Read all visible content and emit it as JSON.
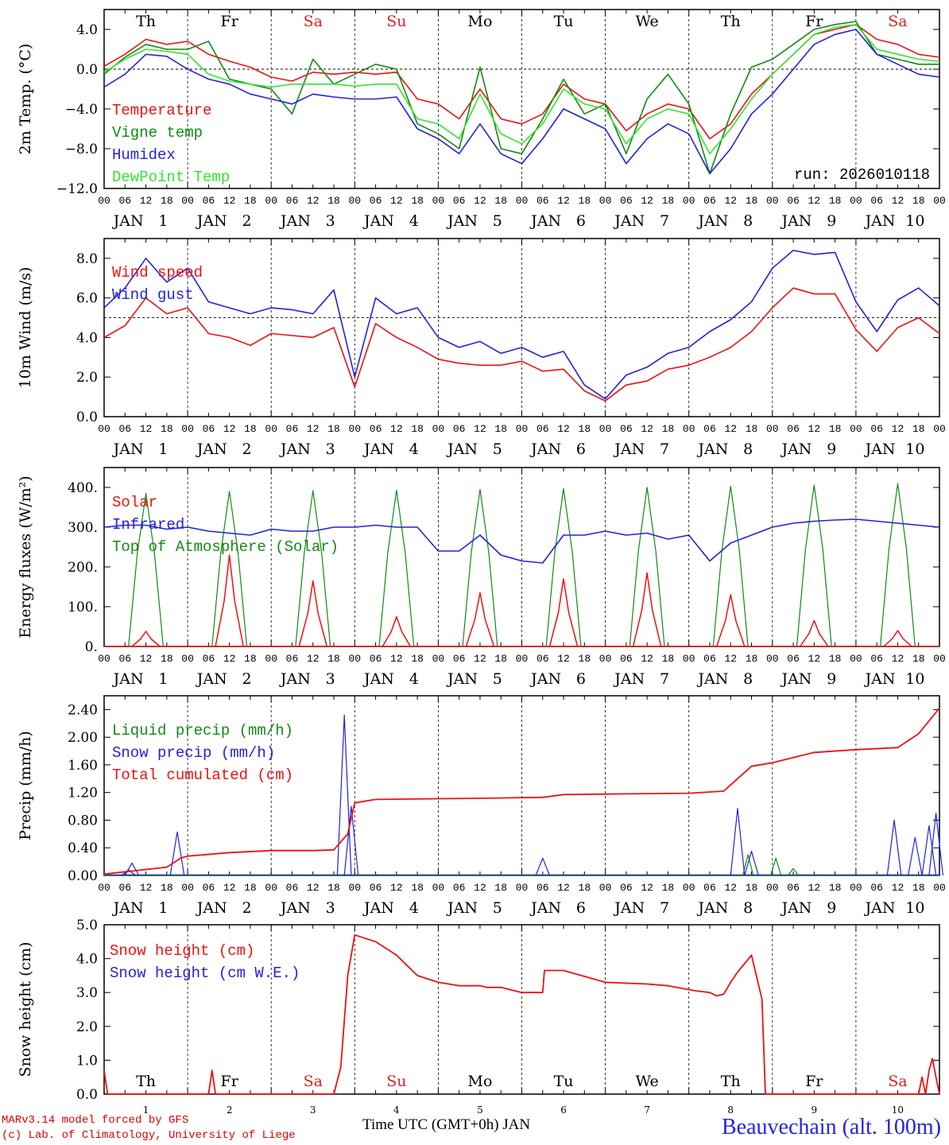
{
  "days": [
    "1",
    "2",
    "3",
    "4",
    "5",
    "6",
    "7",
    "8",
    "9",
    "10"
  ],
  "weekdays": [
    {
      "label": "Th",
      "color": "#000000"
    },
    {
      "label": "Fr",
      "color": "#000000"
    },
    {
      "label": "Sa",
      "color": "#e02020"
    },
    {
      "label": "Su",
      "color": "#e02020"
    },
    {
      "label": "Mo",
      "color": "#000000"
    },
    {
      "label": "Tu",
      "color": "#000000"
    },
    {
      "label": "We",
      "color": "#000000"
    },
    {
      "label": "Th",
      "color": "#000000"
    },
    {
      "label": "Fr",
      "color": "#000000"
    },
    {
      "label": "Sa",
      "color": "#e02020"
    }
  ],
  "month_label": "JAN",
  "hour_ticks": [
    "00",
    "06",
    "12",
    "18"
  ],
  "colors": {
    "red": "#ee1111",
    "green": "#138a13",
    "blue": "#2222dd",
    "lightgreen": "#33e533",
    "title_blue": "#2323e6"
  },
  "footer": {
    "model_line": "MARv3.14 model forced by GFS",
    "lab_line": "(c) Lab. of Climatology, University of Liege",
    "x_title": "Time UTC (GMT+0h) JAN",
    "station": "Beauvechain (alt. 100m)"
  },
  "chart_data": [
    {
      "id": "temperature",
      "type": "line",
      "ylabel": "2m Temp. (°C)",
      "ylim": [
        -12,
        6
      ],
      "yticks": [
        -12,
        -8,
        -4,
        0,
        4
      ],
      "ytick_labels": [
        "−12.0",
        "−8.0",
        "−4.0",
        "0.0",
        "4.0"
      ],
      "reference_line": 0,
      "annotation": "run: 2026010118",
      "x_hours": [
        0,
        6,
        12,
        18,
        24,
        30,
        36,
        42,
        48,
        54,
        60,
        66,
        72,
        78,
        84,
        90,
        96,
        102,
        108,
        114,
        120,
        126,
        132,
        138,
        144,
        150,
        156,
        162,
        168,
        174,
        180,
        186,
        192,
        198,
        204,
        210,
        216,
        222,
        228,
        234,
        240
      ],
      "series": [
        {
          "name": "Temperature",
          "color": "red",
          "values": [
            0.3,
            1.5,
            3.0,
            2.5,
            2.8,
            1.5,
            0.8,
            0.2,
            -0.8,
            -1.2,
            -0.3,
            -0.5,
            -0.3,
            -0.5,
            -0.3,
            -3.0,
            -3.5,
            -5.0,
            -2.0,
            -5.0,
            -5.5,
            -4.5,
            -1.5,
            -3.0,
            -3.5,
            -6.2,
            -4.5,
            -3.5,
            -4.0,
            -7.0,
            -5.5,
            -2.5,
            -0.5,
            1.5,
            3.5,
            4.0,
            4.5,
            3.0,
            2.5,
            1.5,
            1.2
          ]
        },
        {
          "name": "Vigne temp",
          "color": "green",
          "values": [
            -0.5,
            1.2,
            2.5,
            2.0,
            2.0,
            2.8,
            -1.0,
            -1.5,
            -2.0,
            -4.5,
            1.0,
            -1.5,
            -0.5,
            0.5,
            0.0,
            -5.5,
            -6.5,
            -8.0,
            0.2,
            -8.0,
            -8.5,
            -5.0,
            -1.0,
            -4.5,
            -3.5,
            -8.5,
            -3.0,
            -0.5,
            -3.5,
            -10.5,
            -4.5,
            0.2,
            1.0,
            2.5,
            4.0,
            4.5,
            4.8,
            1.5,
            1.0,
            0.5,
            0.5
          ]
        },
        {
          "name": "Humidex",
          "color": "blue",
          "values": [
            -1.8,
            -0.5,
            1.5,
            1.3,
            0.0,
            -1.0,
            -1.5,
            -2.5,
            -3.0,
            -3.5,
            -2.5,
            -2.8,
            -3.0,
            -3.0,
            -2.8,
            -6.0,
            -7.0,
            -8.5,
            -5.5,
            -8.5,
            -9.5,
            -7.0,
            -4.0,
            -5.0,
            -6.0,
            -9.5,
            -7.0,
            -5.5,
            -6.5,
            -10.5,
            -8.0,
            -4.5,
            -2.5,
            0.0,
            2.5,
            3.5,
            4.0,
            1.5,
            0.5,
            -0.5,
            -0.8
          ]
        },
        {
          "name": "DewPoint Temp",
          "color": "lightgreen",
          "values": [
            -0.3,
            1.0,
            2.0,
            1.8,
            1.5,
            -0.5,
            -1.2,
            -1.5,
            -1.8,
            -1.5,
            -1.5,
            -1.5,
            -1.7,
            -1.5,
            -1.5,
            -5.0,
            -5.5,
            -7.0,
            -2.5,
            -6.5,
            -7.5,
            -5.5,
            -2.0,
            -3.5,
            -4.0,
            -7.5,
            -5.0,
            -4.0,
            -4.5,
            -8.5,
            -6.0,
            -3.0,
            -0.5,
            1.5,
            3.5,
            4.2,
            4.5,
            2.0,
            1.5,
            1.0,
            0.8
          ]
        }
      ]
    },
    {
      "id": "wind",
      "type": "line",
      "ylabel": "10m Wind (m/s)",
      "ylim": [
        0,
        9
      ],
      "yticks": [
        0,
        2,
        4,
        6,
        8
      ],
      "ytick_labels": [
        "0.0",
        "2.0",
        "4.0",
        "6.0",
        "8.0"
      ],
      "reference_line": 5,
      "x_hours": [
        0,
        6,
        12,
        18,
        24,
        30,
        36,
        42,
        48,
        54,
        60,
        66,
        72,
        78,
        84,
        90,
        96,
        102,
        108,
        114,
        120,
        126,
        132,
        138,
        144,
        150,
        156,
        162,
        168,
        174,
        180,
        186,
        192,
        198,
        204,
        210,
        216,
        222,
        228,
        234,
        240
      ],
      "series": [
        {
          "name": "Wind speed",
          "color": "red",
          "values": [
            4.0,
            4.6,
            6.0,
            5.2,
            5.5,
            4.2,
            4.0,
            3.6,
            4.2,
            4.1,
            4.0,
            4.5,
            1.5,
            4.7,
            4.0,
            3.5,
            2.9,
            2.7,
            2.6,
            2.6,
            2.8,
            2.3,
            2.4,
            1.3,
            0.8,
            1.6,
            1.8,
            2.4,
            2.6,
            3.0,
            3.5,
            4.3,
            5.5,
            6.5,
            6.2,
            6.2,
            4.4,
            3.3,
            4.5,
            5.0,
            4.2
          ]
        },
        {
          "name": "Wind gust",
          "color": "blue",
          "values": [
            5.5,
            6.5,
            8.0,
            6.8,
            7.5,
            5.8,
            5.5,
            5.2,
            5.5,
            5.4,
            5.2,
            6.4,
            2.0,
            6.0,
            5.2,
            5.5,
            4.0,
            3.5,
            3.8,
            3.2,
            3.5,
            3.0,
            3.3,
            1.6,
            0.9,
            2.1,
            2.5,
            3.2,
            3.5,
            4.3,
            4.9,
            5.8,
            7.5,
            8.4,
            8.2,
            8.3,
            5.8,
            4.3,
            5.9,
            6.5,
            5.6
          ]
        }
      ]
    },
    {
      "id": "energy",
      "type": "line",
      "ylabel": "Energy fluxes (W/m²)",
      "ylim": [
        0,
        450
      ],
      "yticks": [
        0,
        100,
        200,
        300,
        400
      ],
      "ytick_labels": [
        "0.",
        "100.",
        "200.",
        "300.",
        "400."
      ],
      "peaks": {
        "toa": [
          385,
          390,
          392,
          393,
          395,
          397,
          400,
          403,
          406,
          410
        ],
        "solar": [
          38,
          230,
          165,
          75,
          135,
          170,
          185,
          130,
          65,
          40
        ]
      },
      "infrared_hours": [
        0,
        6,
        12,
        18,
        24,
        30,
        36,
        42,
        48,
        54,
        60,
        66,
        72,
        78,
        84,
        90,
        96,
        102,
        108,
        114,
        120,
        126,
        132,
        138,
        144,
        150,
        156,
        162,
        168,
        174,
        180,
        186,
        192,
        198,
        204,
        210,
        216,
        222,
        228,
        234,
        240
      ],
      "infrared_values": [
        300,
        305,
        305,
        295,
        300,
        290,
        285,
        280,
        295,
        290,
        290,
        300,
        300,
        305,
        300,
        300,
        240,
        240,
        280,
        230,
        215,
        210,
        280,
        280,
        290,
        280,
        285,
        270,
        280,
        215,
        260,
        280,
        300,
        310,
        315,
        318,
        320,
        315,
        310,
        305,
        300
      ],
      "series": [
        {
          "name": "Solar",
          "color": "red"
        },
        {
          "name": "Infrared",
          "color": "blue"
        },
        {
          "name": "Top of Atmosphere (Solar)",
          "color": "green"
        }
      ]
    },
    {
      "id": "precip",
      "type": "line",
      "ylabel": "Precip (mm/h)",
      "ylim": [
        0,
        2.6
      ],
      "yticks": [
        0,
        0.4,
        0.8,
        1.2,
        1.6,
        2.0,
        2.4
      ],
      "ytick_labels": [
        "0.00",
        "0.40",
        "0.80",
        "1.20",
        "1.60",
        "2.00",
        "2.40"
      ],
      "cumulated": {
        "x_hours": [
          0,
          18,
          22,
          24,
          36,
          48,
          60,
          66,
          70,
          72,
          78,
          96,
          114,
          126,
          132,
          150,
          168,
          178,
          182,
          186,
          192,
          204,
          216,
          228,
          234,
          240
        ],
        "values": [
          0.02,
          0.12,
          0.25,
          0.28,
          0.33,
          0.36,
          0.36,
          0.37,
          0.6,
          1.05,
          1.1,
          1.11,
          1.12,
          1.13,
          1.17,
          1.18,
          1.19,
          1.22,
          1.4,
          1.58,
          1.63,
          1.78,
          1.82,
          1.85,
          2.05,
          2.42
        ]
      },
      "snow_spikes": [
        {
          "x": 7,
          "y": 0.08
        },
        {
          "x": 8,
          "y": 0.18
        },
        {
          "x": 21,
          "y": 0.63
        },
        {
          "x": 69,
          "y": 2.32
        },
        {
          "x": 71,
          "y": 1.0
        },
        {
          "x": 126,
          "y": 0.25
        },
        {
          "x": 182,
          "y": 0.97
        },
        {
          "x": 186,
          "y": 0.35
        },
        {
          "x": 227,
          "y": 0.8
        },
        {
          "x": 233,
          "y": 0.55
        },
        {
          "x": 237,
          "y": 0.72
        },
        {
          "x": 239,
          "y": 0.9
        }
      ],
      "liquid_spikes": [
        {
          "x": 185,
          "y": 0.3
        },
        {
          "x": 193,
          "y": 0.25
        },
        {
          "x": 198,
          "y": 0.1
        }
      ],
      "series": [
        {
          "name": "Liquid precip (mm/h)",
          "color": "green"
        },
        {
          "name": "Snow precip (mm/h)",
          "color": "blue"
        },
        {
          "name": "Total cumulated (cm)",
          "color": "red"
        }
      ]
    },
    {
      "id": "snow",
      "type": "line",
      "ylabel": "Snow height (cm)",
      "ylim": [
        0,
        5
      ],
      "yticks": [
        0,
        1,
        2,
        3,
        4,
        5
      ],
      "ytick_labels": [
        "0.0",
        "1.0",
        "2.0",
        "3.0",
        "4.0",
        "5.0"
      ],
      "x_hours": [
        0,
        1,
        2,
        24,
        30,
        31,
        32,
        66,
        68,
        70,
        72,
        78,
        84,
        90,
        96,
        102,
        108,
        110,
        114,
        120,
        126,
        126.5,
        132,
        144,
        156,
        162,
        170,
        174,
        176,
        178,
        180,
        182,
        186,
        189,
        190,
        216,
        234,
        235,
        236,
        237,
        238,
        239,
        240
      ],
      "series": [
        {
          "name": "Snow height (cm)",
          "color": "red",
          "values": [
            0.7,
            0,
            0,
            0,
            0,
            0.7,
            0,
            0,
            0.8,
            3.5,
            4.7,
            4.5,
            4.1,
            3.5,
            3.3,
            3.2,
            3.2,
            3.15,
            3.15,
            3.0,
            3.0,
            3.65,
            3.65,
            3.3,
            3.25,
            3.2,
            3.05,
            3.0,
            2.9,
            2.95,
            3.3,
            3.6,
            4.1,
            2.8,
            0,
            0,
            0,
            0.5,
            0,
            0.7,
            1.05,
            0.5,
            0
          ]
        },
        {
          "name": "Snow height (cm W.E.)",
          "color": "blue",
          "values": []
        }
      ]
    }
  ]
}
